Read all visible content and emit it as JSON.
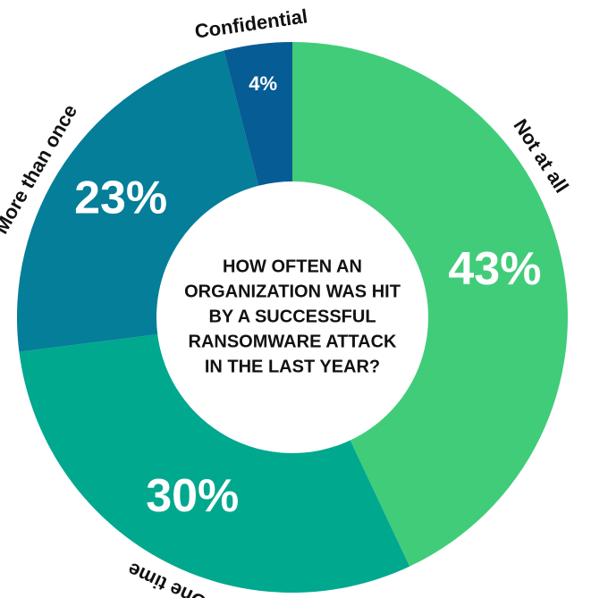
{
  "chart_data": {
    "type": "donut",
    "title": [
      "HOW OFTEN AN",
      "ORGANIZATION WAS HIT",
      "BY A SUCCESSFUL",
      "RANSOMWARE ATTACK",
      "IN THE LAST YEAR?"
    ],
    "categories": [
      "Not at all",
      "One time",
      "More than once",
      "Confidential"
    ],
    "values": [
      43,
      30,
      23,
      4
    ],
    "value_labels": [
      "43%",
      "30%",
      "23%",
      "4%"
    ],
    "colors": [
      "#41cc7a",
      "#00a88e",
      "#047e99",
      "#065c94"
    ]
  }
}
